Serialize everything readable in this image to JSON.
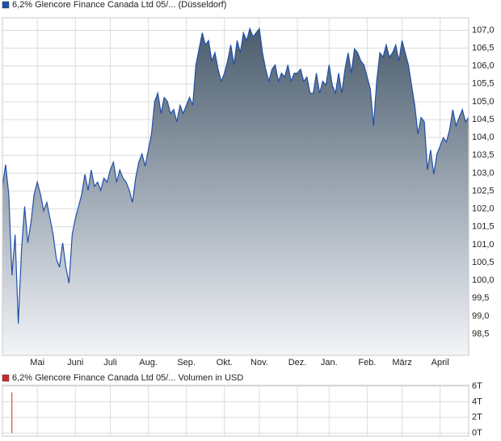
{
  "chart_data": [
    {
      "type": "area",
      "series": [
        {
          "name": "6,2% Glencore Finance Canada Ltd 05/... (Düsseldorf)",
          "color": "#2050a8",
          "values": [
            102.63,
            103.24,
            102.41,
            100.14,
            101.28,
            98.79,
            100.82,
            102.07,
            101.05,
            101.62,
            102.41,
            102.75,
            102.41,
            101.95,
            102.18,
            101.73,
            101.28,
            100.6,
            100.37,
            101.05,
            100.37,
            99.92,
            101.28,
            101.73,
            102.07,
            102.41,
            102.97,
            102.52,
            103.09,
            102.63,
            102.75,
            102.52,
            102.86,
            102.75,
            103.09,
            103.31,
            102.75,
            103.09,
            102.86,
            102.75,
            102.52,
            102.18,
            102.86,
            103.31,
            103.54,
            103.2,
            103.65,
            104.1,
            105.01,
            105.24,
            104.67,
            105.12,
            105.01,
            104.67,
            104.78,
            104.44,
            104.9,
            104.67,
            104.9,
            105.12,
            104.9,
            106.03,
            106.48,
            106.93,
            106.59,
            106.71,
            106.14,
            106.37,
            105.91,
            105.57,
            105.8,
            106.14,
            106.59,
            106.03,
            106.71,
            106.37,
            106.93,
            106.71,
            107.05,
            106.82,
            106.93,
            107.05,
            106.37,
            105.91,
            105.57,
            105.91,
            106.03,
            105.57,
            105.8,
            105.69,
            106.03,
            105.57,
            105.8,
            105.8,
            105.91,
            105.57,
            105.69,
            105.24,
            105.24,
            105.8,
            105.24,
            105.57,
            105.46,
            106.03,
            105.46,
            105.24,
            105.8,
            105.24,
            105.91,
            106.37,
            105.8,
            106.48,
            106.37,
            106.14,
            106.03,
            105.69,
            105.35,
            104.33,
            105.57,
            106.37,
            106.25,
            106.59,
            106.25,
            106.37,
            106.59,
            106.14,
            106.71,
            106.37,
            106.03,
            105.46,
            104.9,
            104.1,
            104.56,
            104.44,
            103.09,
            103.65,
            102.97,
            103.54,
            103.76,
            103.99,
            103.88,
            104.22,
            104.78,
            104.33,
            104.56,
            104.78,
            104.44,
            104.56
          ]
        }
      ],
      "xlim": [
        0,
        147
      ],
      "xticks": [
        {
          "value": 11,
          "label": "Mai"
        },
        {
          "value": 23,
          "label": "Juni"
        },
        {
          "value": 34,
          "label": "Juli"
        },
        {
          "value": 46,
          "label": "Aug."
        },
        {
          "value": 58,
          "label": "Sep."
        },
        {
          "value": 70,
          "label": "Okt."
        },
        {
          "value": 81,
          "label": "Nov."
        },
        {
          "value": 93,
          "label": "Dez."
        },
        {
          "value": 103,
          "label": "Jan."
        },
        {
          "value": 115,
          "label": "Feb."
        },
        {
          "value": 126,
          "label": "März"
        },
        {
          "value": 138,
          "label": "April"
        }
      ],
      "ylim": [
        97.9,
        107.35
      ],
      "yticks": [
        {
          "value": 98.5,
          "label": "98,5"
        },
        {
          "value": 99,
          "label": "99,0"
        },
        {
          "value": 99.5,
          "label": "99,5"
        },
        {
          "value": 100,
          "label": "100,0"
        },
        {
          "value": 100.5,
          "label": "100,5"
        },
        {
          "value": 101,
          "label": "101,0"
        },
        {
          "value": 101.5,
          "label": "101,5"
        },
        {
          "value": 102,
          "label": "102,0"
        },
        {
          "value": 102.5,
          "label": "102,5"
        },
        {
          "value": 103,
          "label": "103,0"
        },
        {
          "value": 103.5,
          "label": "103,5"
        },
        {
          "value": 104,
          "label": "104,0"
        },
        {
          "value": 104.5,
          "label": "104,5"
        },
        {
          "value": 105,
          "label": "105,0"
        },
        {
          "value": 105.5,
          "label": "105,5"
        },
        {
          "value": 106,
          "label": "106,0"
        },
        {
          "value": 106.5,
          "label": "106,5"
        },
        {
          "value": 107,
          "label": "107,0"
        }
      ],
      "grid": true
    },
    {
      "type": "bar",
      "series": [
        {
          "name": "6,2% Glencore Finance Canada Ltd 05/... Volumen in USD",
          "color": "#cc2a2a",
          "values": [
            0,
            0,
            0,
            5.2,
            0,
            0,
            0,
            0,
            0,
            0,
            0,
            0,
            0,
            0,
            0,
            0,
            0,
            0,
            0,
            0,
            0,
            0,
            0,
            0,
            0,
            0,
            0,
            0,
            0,
            0,
            0,
            0,
            0,
            0,
            0,
            0,
            0,
            0,
            0,
            0,
            0,
            0,
            0,
            0,
            0,
            0,
            0,
            0,
            0,
            0,
            0,
            0,
            0,
            0,
            0,
            0,
            0,
            0,
            0,
            0,
            0,
            0,
            0,
            0,
            0,
            0,
            0,
            0,
            0,
            0,
            0,
            0,
            0,
            0,
            0,
            0,
            0,
            0,
            0,
            0,
            0,
            0,
            0,
            0,
            0,
            0,
            0,
            0,
            0,
            0,
            0,
            0,
            0,
            0,
            0,
            0,
            0,
            0,
            0,
            0,
            0,
            0,
            0,
            0,
            0,
            0,
            0,
            0,
            0,
            0,
            0,
            0,
            0,
            0,
            0,
            0,
            0,
            0,
            0,
            0,
            0,
            0,
            0,
            0,
            0,
            0,
            0,
            0,
            0,
            0,
            0,
            0,
            0,
            0,
            0,
            0,
            0,
            0,
            0,
            0,
            0,
            0,
            0,
            0,
            0,
            0,
            0,
            0
          ]
        }
      ],
      "xlim": [
        0,
        147
      ],
      "ylim": [
        -0.4,
        6.1
      ],
      "yticks": [
        {
          "value": 0,
          "label": "0T"
        },
        {
          "value": 2,
          "label": "2T"
        },
        {
          "value": 4,
          "label": "4T"
        },
        {
          "value": 6,
          "label": "6T"
        }
      ],
      "grid": true
    }
  ]
}
